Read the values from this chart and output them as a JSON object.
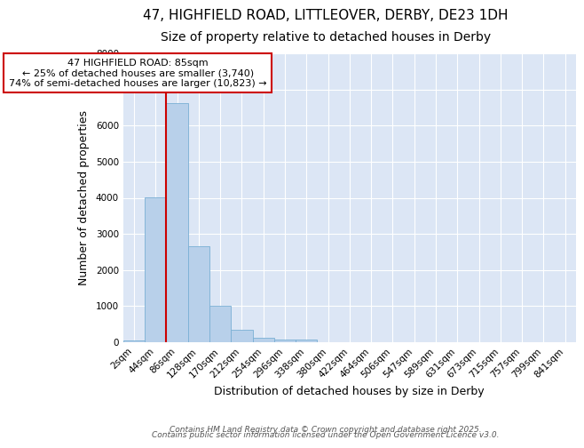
{
  "title_line1": "47, HIGHFIELD ROAD, LITTLEOVER, DERBY, DE23 1DH",
  "title_line2": "Size of property relative to detached houses in Derby",
  "xlabel": "Distribution of detached houses by size in Derby",
  "ylabel": "Number of detached properties",
  "categories": [
    "2sqm",
    "44sqm",
    "86sqm",
    "128sqm",
    "170sqm",
    "212sqm",
    "254sqm",
    "296sqm",
    "338sqm",
    "380sqm",
    "422sqm",
    "464sqm",
    "506sqm",
    "547sqm",
    "589sqm",
    "631sqm",
    "673sqm",
    "715sqm",
    "757sqm",
    "799sqm",
    "841sqm"
  ],
  "values": [
    60,
    4020,
    6620,
    2650,
    1010,
    335,
    130,
    80,
    70,
    0,
    0,
    0,
    0,
    0,
    0,
    0,
    0,
    0,
    0,
    0,
    0
  ],
  "bar_color": "#b8d0ea",
  "bar_edge_color": "#7aafd4",
  "ylim": [
    0,
    8000
  ],
  "yticks": [
    0,
    1000,
    2000,
    3000,
    4000,
    5000,
    6000,
    7000,
    8000
  ],
  "vline_color": "#cc0000",
  "vline_x": 1.5,
  "annotation_title": "47 HIGHFIELD ROAD: 85sqm",
  "annotation_line2": "← 25% of detached houses are smaller (3,740)",
  "annotation_line3": "74% of semi-detached houses are larger (10,823) →",
  "annotation_box_color": "#cc0000",
  "footer_line1": "Contains HM Land Registry data © Crown copyright and database right 2025.",
  "footer_line2": "Contains public sector information licensed under the Open Government Licence v3.0.",
  "fig_background_color": "#ffffff",
  "plot_background_color": "#dce6f5",
  "grid_color": "#ffffff",
  "title1_fontsize": 11,
  "title2_fontsize": 10,
  "axis_label_fontsize": 9,
  "tick_fontsize": 7.5,
  "footer_fontsize": 6.5,
  "annot_fontsize": 8
}
